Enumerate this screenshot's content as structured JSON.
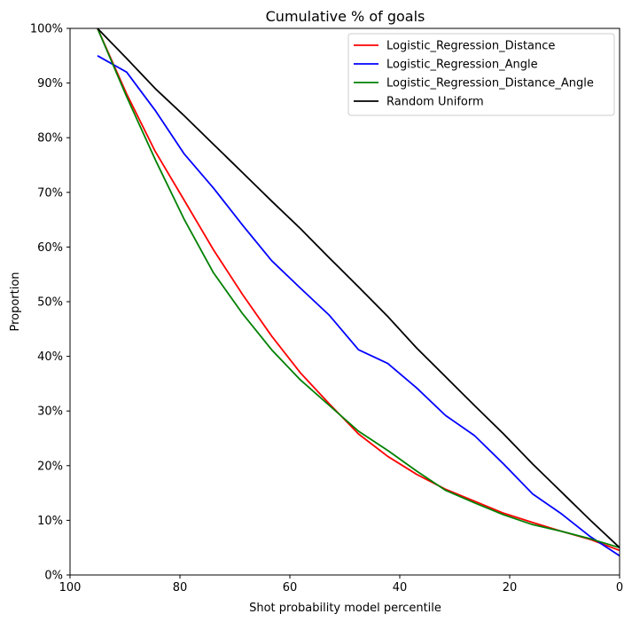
{
  "chart_data": {
    "type": "line",
    "title": "Cumulative % of goals",
    "xlabel": "Shot probability model percentile",
    "ylabel": "Proportion",
    "xlim": [
      100,
      0
    ],
    "ylim": [
      0,
      1
    ],
    "x_reversed": true,
    "grid": false,
    "legend_position": "top-right",
    "xticks": [
      100,
      80,
      60,
      40,
      20,
      0
    ],
    "xtick_labels": [
      "100",
      "80",
      "60",
      "40",
      "20",
      "0"
    ],
    "yticks": [
      0,
      0.1,
      0.2,
      0.3,
      0.4,
      0.5,
      0.6,
      0.7,
      0.8,
      0.9,
      1.0
    ],
    "ytick_labels": [
      "0%",
      "10%",
      "20%",
      "30%",
      "40%",
      "50%",
      "60%",
      "70%",
      "80%",
      "90%",
      "100%"
    ],
    "series": [
      {
        "name": "Logistic_Regression_Distance",
        "color": "#ff0000",
        "x": [
          95,
          89.7,
          84.5,
          79.2,
          73.9,
          68.6,
          63.3,
          58.1,
          52.8,
          47.5,
          42.2,
          36.9,
          31.7,
          26.4,
          21.1,
          15.8,
          10.6,
          5.3,
          0
        ],
        "y": [
          1.0,
          0.88,
          0.775,
          0.685,
          0.595,
          0.513,
          0.437,
          0.37,
          0.313,
          0.258,
          0.217,
          0.184,
          0.157,
          0.135,
          0.113,
          0.096,
          0.08,
          0.065,
          0.045
        ]
      },
      {
        "name": "Logistic_Regression_Angle",
        "color": "#0000ff",
        "x": [
          95,
          89.7,
          84.5,
          79.2,
          73.9,
          68.6,
          63.3,
          58.1,
          52.8,
          47.5,
          42.2,
          36.9,
          31.7,
          26.4,
          21.1,
          15.8,
          10.6,
          5.3,
          0
        ],
        "y": [
          0.95,
          0.92,
          0.85,
          0.77,
          0.708,
          0.64,
          0.575,
          0.525,
          0.475,
          0.412,
          0.387,
          0.342,
          0.292,
          0.255,
          0.203,
          0.148,
          0.112,
          0.07,
          0.035
        ]
      },
      {
        "name": "Logistic_Regression_Distance_Angle",
        "color": "#008000",
        "x": [
          95,
          89.7,
          84.5,
          79.2,
          73.9,
          68.6,
          63.3,
          58.1,
          52.8,
          47.5,
          42.2,
          36.9,
          31.7,
          26.4,
          21.1,
          15.8,
          10.6,
          5.3,
          0
        ],
        "y": [
          1.0,
          0.875,
          0.76,
          0.65,
          0.553,
          0.478,
          0.412,
          0.357,
          0.31,
          0.263,
          0.228,
          0.19,
          0.155,
          0.132,
          0.11,
          0.092,
          0.08,
          0.066,
          0.05
        ]
      },
      {
        "name": "Random Uniform",
        "color": "#000000",
        "x": [
          95,
          89.7,
          84.5,
          79.2,
          73.9,
          68.6,
          63.3,
          58.1,
          52.8,
          47.5,
          42.2,
          36.9,
          31.7,
          26.4,
          21.1,
          15.8,
          10.6,
          5.3,
          0
        ],
        "y": [
          1.0,
          0.945,
          0.89,
          0.84,
          0.788,
          0.736,
          0.684,
          0.634,
          0.58,
          0.527,
          0.473,
          0.415,
          0.363,
          0.31,
          0.258,
          0.203,
          0.152,
          0.1,
          0.05
        ]
      }
    ]
  }
}
